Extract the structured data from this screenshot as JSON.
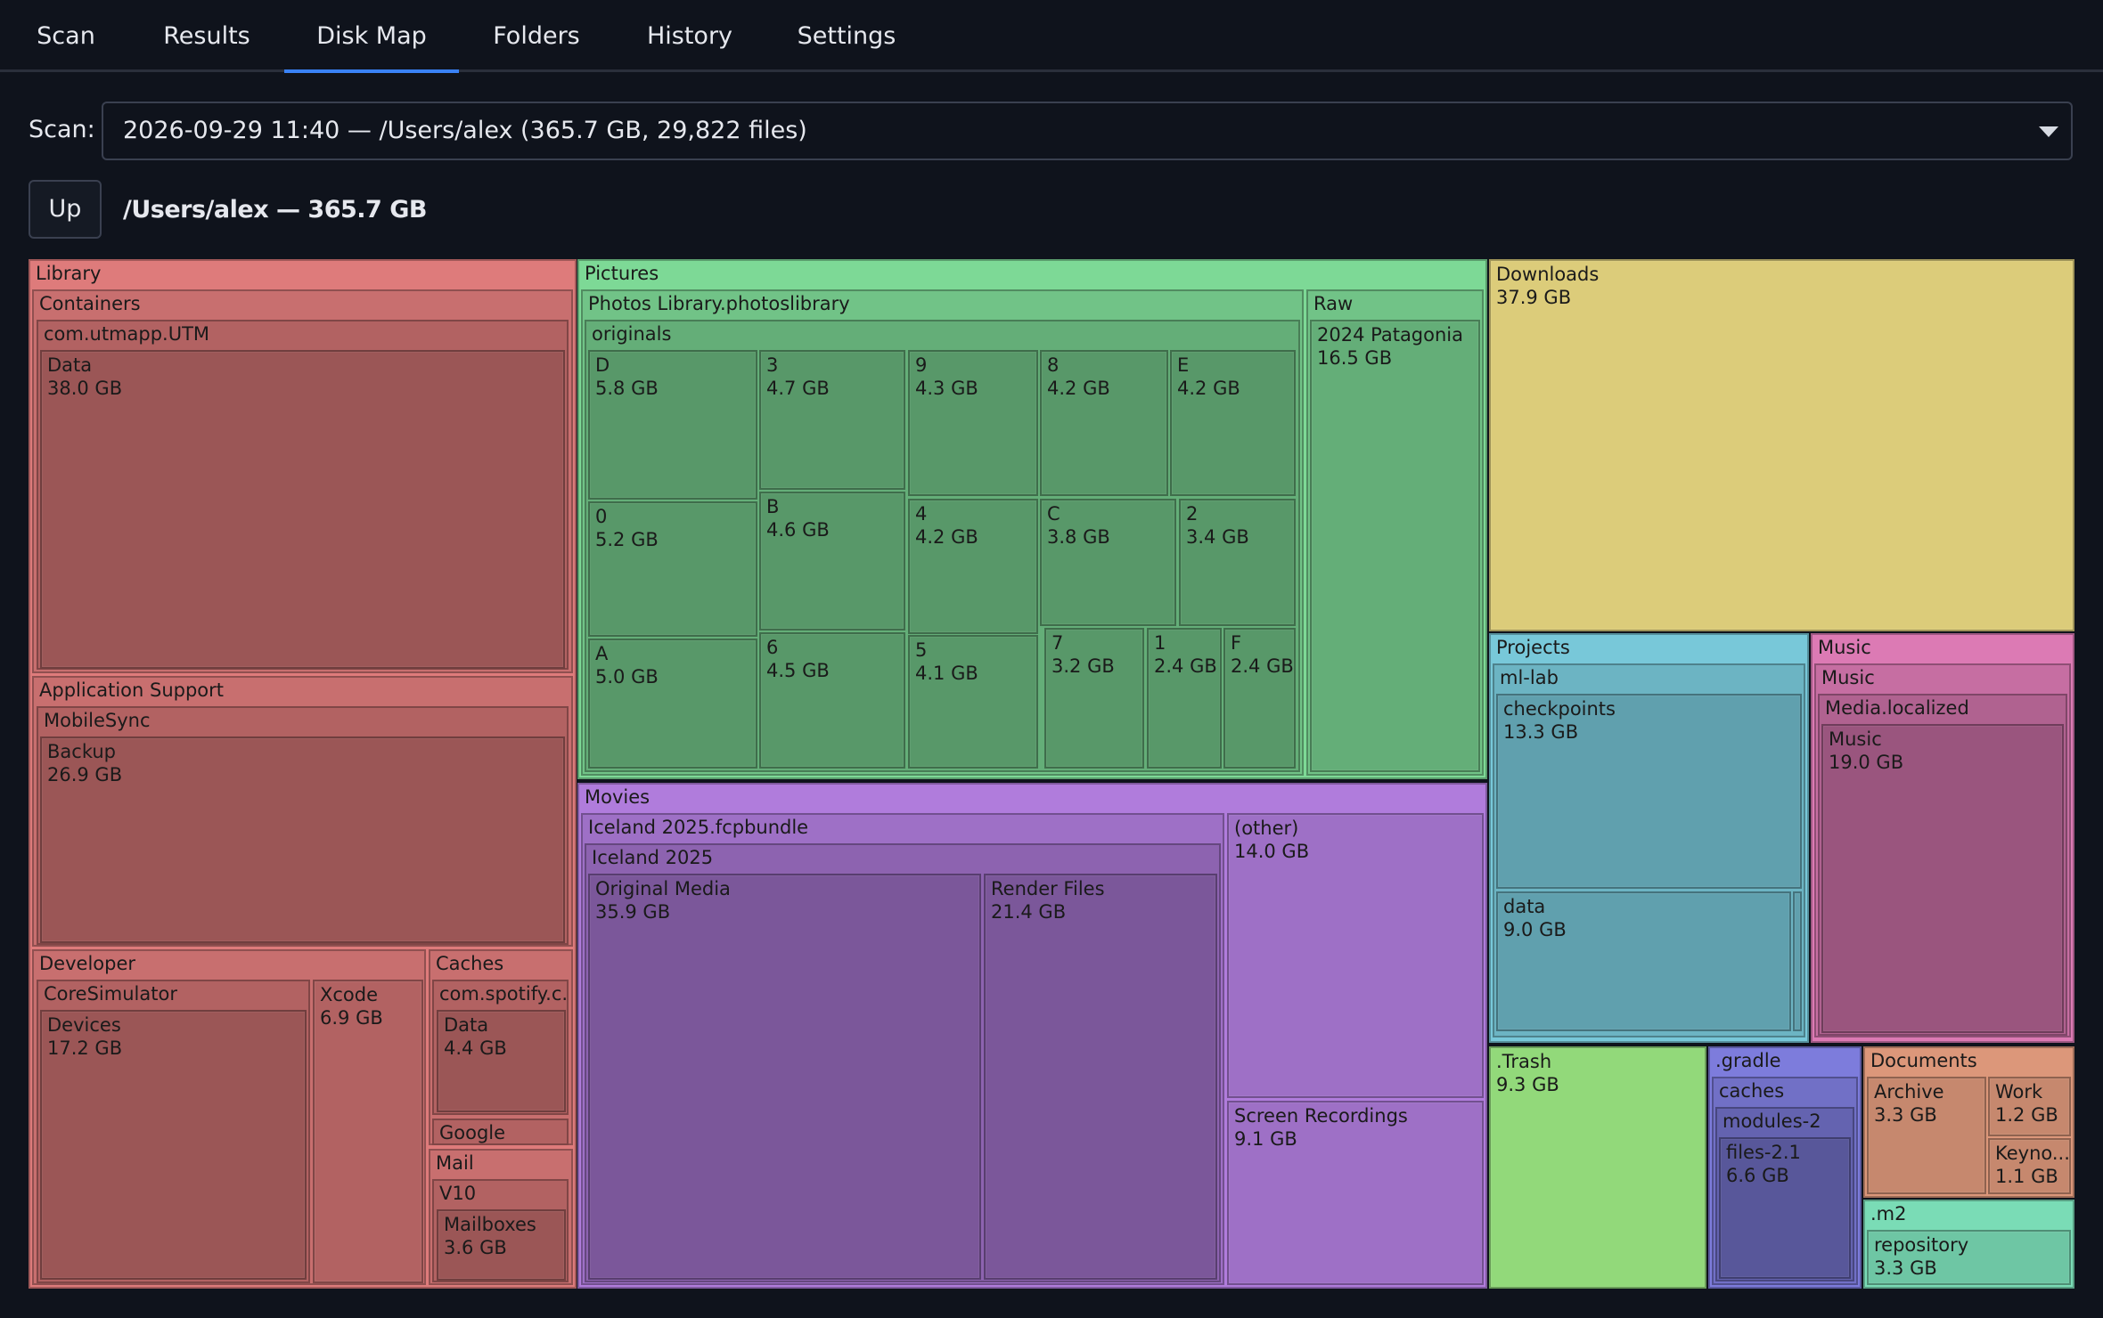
{
  "tabs": [
    {
      "label": "Scan",
      "key": "scan"
    },
    {
      "label": "Results",
      "key": "results"
    },
    {
      "label": "Disk Map",
      "key": "disk-map",
      "active": true
    },
    {
      "label": "Folders",
      "key": "folders"
    },
    {
      "label": "History",
      "key": "history"
    },
    {
      "label": "Settings",
      "key": "settings"
    }
  ],
  "scan": {
    "label": "Scan:",
    "selected": "2026-09-29 11:40 — /Users/alex  (365.7 GB, 29,822 files)"
  },
  "nav": {
    "up_label": "Up",
    "path": "/Users/alex — 365.7 GB"
  },
  "colors": {
    "library": "#de7b7b",
    "pictures": "#7dd996",
    "downloads": "#dccc7a",
    "projects": "#78c8d9",
    "music": "#dc7ab4",
    "movies": "#b07cdc",
    "trash": "#92d97a",
    "gradle": "#7d7cdc",
    "documents": "#dc977a",
    "m2": "#7adcb6",
    "tab_accent": "#3a82f7"
  },
  "treemap": {
    "tiles": [
      {
        "id": "library",
        "name": "Library",
        "color": "library",
        "depth": 0,
        "header": true
      },
      {
        "id": "containers",
        "name": "Containers",
        "color": "library",
        "depth": 1,
        "header": true
      },
      {
        "id": "utm",
        "name": "com.utmapp.UTM",
        "color": "library",
        "depth": 2,
        "header": true
      },
      {
        "id": "utm-data",
        "name": "Data",
        "size": "38.0 GB",
        "color": "library",
        "depth": 3
      },
      {
        "id": "appsupport",
        "name": "Application Support",
        "color": "library",
        "depth": 1,
        "header": true
      },
      {
        "id": "mobilesync",
        "name": "MobileSync",
        "color": "library",
        "depth": 2,
        "header": true
      },
      {
        "id": "backup",
        "name": "Backup",
        "size": "26.9 GB",
        "color": "library",
        "depth": 3
      },
      {
        "id": "developer",
        "name": "Developer",
        "color": "library",
        "depth": 1,
        "header": true
      },
      {
        "id": "coresim",
        "name": "CoreSimulator",
        "color": "library",
        "depth": 2,
        "header": true
      },
      {
        "id": "devices",
        "name": "Devices",
        "size": "17.2 GB",
        "color": "library",
        "depth": 3
      },
      {
        "id": "xcode",
        "name": "Xcode",
        "size": "6.9 GB",
        "color": "library",
        "depth": 2
      },
      {
        "id": "caches",
        "name": "Caches",
        "color": "library",
        "depth": 1,
        "header": true
      },
      {
        "id": "spotify",
        "name": "com.spotify.c...",
        "color": "library",
        "depth": 2,
        "header": true
      },
      {
        "id": "spotify-data",
        "name": "Data",
        "size": "4.4 GB",
        "color": "library",
        "depth": 3
      },
      {
        "id": "google",
        "name": "Google",
        "color": "library",
        "depth": 2,
        "header": true
      },
      {
        "id": "mail",
        "name": "Mail",
        "color": "library",
        "depth": 1,
        "header": true
      },
      {
        "id": "v10",
        "name": "V10",
        "color": "library",
        "depth": 2,
        "header": true
      },
      {
        "id": "mailboxes",
        "name": "Mailboxes",
        "size": "3.6 GB",
        "color": "library",
        "depth": 3
      },
      {
        "id": "pictures",
        "name": "Pictures",
        "color": "pictures",
        "depth": 0,
        "header": true
      },
      {
        "id": "photoslib",
        "name": "Photos Library.photoslibrary",
        "color": "pictures",
        "depth": 1,
        "header": true
      },
      {
        "id": "originals",
        "name": "originals",
        "color": "pictures",
        "depth": 2,
        "header": true
      },
      {
        "id": "o-D",
        "name": "D",
        "size": "5.8 GB",
        "color": "pictures",
        "depth": 3
      },
      {
        "id": "o-3",
        "name": "3",
        "size": "4.7 GB",
        "color": "pictures",
        "depth": 3
      },
      {
        "id": "o-9",
        "name": "9",
        "size": "4.3 GB",
        "color": "pictures",
        "depth": 3
      },
      {
        "id": "o-8",
        "name": "8",
        "size": "4.2 GB",
        "color": "pictures",
        "depth": 3
      },
      {
        "id": "o-E",
        "name": "E",
        "size": "4.2 GB",
        "color": "pictures",
        "depth": 3
      },
      {
        "id": "o-0",
        "name": "0",
        "size": "5.2 GB",
        "color": "pictures",
        "depth": 3
      },
      {
        "id": "o-B",
        "name": "B",
        "size": "4.6 GB",
        "color": "pictures",
        "depth": 3
      },
      {
        "id": "o-4",
        "name": "4",
        "size": "4.2 GB",
        "color": "pictures",
        "depth": 3
      },
      {
        "id": "o-C",
        "name": "C",
        "size": "3.8 GB",
        "color": "pictures",
        "depth": 3
      },
      {
        "id": "o-2",
        "name": "2",
        "size": "3.4 GB",
        "color": "pictures",
        "depth": 3
      },
      {
        "id": "o-A",
        "name": "A",
        "size": "5.0 GB",
        "color": "pictures",
        "depth": 3
      },
      {
        "id": "o-6",
        "name": "6",
        "size": "4.5 GB",
        "color": "pictures",
        "depth": 3
      },
      {
        "id": "o-5",
        "name": "5",
        "size": "4.1 GB",
        "color": "pictures",
        "depth": 3
      },
      {
        "id": "o-7",
        "name": "7",
        "size": "3.2 GB",
        "color": "pictures",
        "depth": 3
      },
      {
        "id": "o-1",
        "name": "1",
        "size": "2.4 GB",
        "color": "pictures",
        "depth": 3
      },
      {
        "id": "o-F",
        "name": "F",
        "size": "2.4 GB",
        "color": "pictures",
        "depth": 3
      },
      {
        "id": "raw",
        "name": "Raw",
        "color": "pictures",
        "depth": 1,
        "header": true
      },
      {
        "id": "patagonia",
        "name": "2024 Patagonia",
        "size": "16.5 GB",
        "color": "pictures",
        "depth": 2
      },
      {
        "id": "downloads",
        "name": "Downloads",
        "size": "37.9 GB",
        "color": "downloads",
        "depth": 0
      },
      {
        "id": "movies",
        "name": "Movies",
        "color": "movies",
        "depth": 0,
        "header": true
      },
      {
        "id": "fcp",
        "name": "Iceland 2025.fcpbundle",
        "color": "movies",
        "depth": 1,
        "header": true
      },
      {
        "id": "iceland",
        "name": "Iceland 2025",
        "color": "movies",
        "depth": 2,
        "header": true
      },
      {
        "id": "origmedia",
        "name": "Original Media",
        "size": "35.9 GB",
        "color": "movies",
        "depth": 3
      },
      {
        "id": "render",
        "name": "Render Files",
        "size": "21.4 GB",
        "color": "movies",
        "depth": 3
      },
      {
        "id": "mov-other",
        "name": "(other)",
        "size": "14.0 GB",
        "color": "movies",
        "depth": 1
      },
      {
        "id": "screenrec",
        "name": "Screen Recordings",
        "size": "9.1 GB",
        "color": "movies",
        "depth": 1
      },
      {
        "id": "projects",
        "name": "Projects",
        "color": "projects",
        "depth": 0,
        "header": true
      },
      {
        "id": "mllab",
        "name": "ml-lab",
        "color": "projects",
        "depth": 1,
        "header": true
      },
      {
        "id": "checkpoints",
        "name": "checkpoints",
        "size": "13.3 GB",
        "color": "projects",
        "depth": 2
      },
      {
        "id": "mldata",
        "name": "data",
        "size": "9.0 GB",
        "color": "projects",
        "depth": 2
      },
      {
        "id": "mlsmall",
        "name": "",
        "color": "projects",
        "depth": 2
      },
      {
        "id": "music",
        "name": "Music",
        "color": "music",
        "depth": 0,
        "header": true
      },
      {
        "id": "music2",
        "name": "Music",
        "color": "music",
        "depth": 1,
        "header": true
      },
      {
        "id": "medialoc",
        "name": "Media.localized",
        "color": "music",
        "depth": 2,
        "header": true
      },
      {
        "id": "music3",
        "name": "Music",
        "size": "19.0 GB",
        "color": "music",
        "depth": 3
      },
      {
        "id": "trash",
        "name": ".Trash",
        "size": "9.3 GB",
        "color": "trash",
        "depth": 0
      },
      {
        "id": "gradle",
        "name": ".gradle",
        "color": "gradle",
        "depth": 0,
        "header": true
      },
      {
        "id": "gcaches",
        "name": "caches",
        "color": "gradle",
        "depth": 1,
        "header": true
      },
      {
        "id": "modules",
        "name": "modules-2",
        "color": "gradle",
        "depth": 2,
        "header": true
      },
      {
        "id": "files21",
        "name": "files-2.1",
        "size": "6.6 GB",
        "color": "gradle",
        "depth": 3
      },
      {
        "id": "documents",
        "name": "Documents",
        "color": "documents",
        "depth": 0,
        "header": true
      },
      {
        "id": "archive",
        "name": "Archive",
        "size": "3.3 GB",
        "color": "documents",
        "depth": 1
      },
      {
        "id": "work",
        "name": "Work",
        "size": "1.2 GB",
        "color": "documents",
        "depth": 1
      },
      {
        "id": "keyno",
        "name": "Keyno...",
        "size": "1.1 GB",
        "color": "documents",
        "depth": 1
      },
      {
        "id": "m2",
        "name": ".m2",
        "color": "m2",
        "depth": 0,
        "header": true
      },
      {
        "id": "repository",
        "name": "repository",
        "size": "3.3 GB",
        "color": "m2",
        "depth": 1
      }
    ]
  }
}
